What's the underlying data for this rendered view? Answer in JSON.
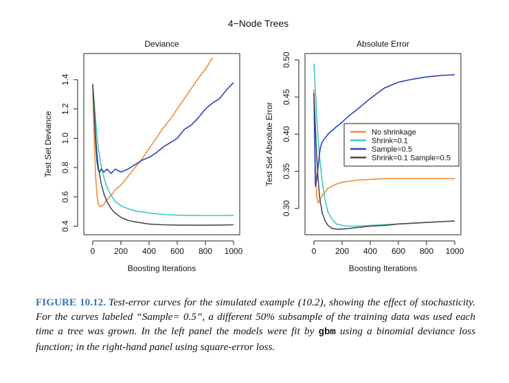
{
  "figure": {
    "title": "4−Node Trees"
  },
  "chart_data": [
    {
      "type": "line",
      "title": "Deviance",
      "xlabel": "Boosting Iterations",
      "ylabel": "Test Set Deviance",
      "xlim": [
        0,
        1000
      ],
      "ylim": [
        0.37,
        1.55
      ],
      "xticks": [
        "0",
        "200",
        "400",
        "600",
        "800",
        "1000"
      ],
      "yticks": [
        "0.4",
        "0.6",
        "0.8",
        "1.0",
        "1.2",
        "1.4"
      ],
      "grid": false,
      "series": [
        {
          "name": "No shrinkage",
          "color": "#f28a30",
          "x": [
            0,
            10,
            20,
            30,
            40,
            50,
            60,
            80,
            100,
            130,
            160,
            200,
            250,
            300,
            350,
            400,
            450,
            500,
            550,
            600,
            650,
            700,
            750,
            800,
            850
          ],
          "y": [
            1.32,
            1.0,
            0.75,
            0.61,
            0.55,
            0.535,
            0.535,
            0.55,
            0.58,
            0.61,
            0.65,
            0.68,
            0.74,
            0.8,
            0.86,
            0.93,
            1.0,
            1.07,
            1.13,
            1.2,
            1.27,
            1.34,
            1.41,
            1.47,
            1.55
          ]
        },
        {
          "name": "Shrink=0.1",
          "color": "#3cc8c0",
          "x": [
            0,
            10,
            20,
            30,
            40,
            60,
            80,
            100,
            130,
            160,
            200,
            250,
            300,
            400,
            500,
            600,
            700,
            800,
            900,
            1000
          ],
          "y": [
            1.36,
            1.25,
            1.13,
            1.02,
            0.93,
            0.81,
            0.73,
            0.67,
            0.61,
            0.57,
            0.54,
            0.52,
            0.505,
            0.49,
            0.48,
            0.476,
            0.474,
            0.473,
            0.473,
            0.474
          ]
        },
        {
          "name": "Sample=0.5",
          "color": "#2b3fc4",
          "x": [
            0,
            10,
            20,
            30,
            40,
            50,
            60,
            80,
            100,
            130,
            160,
            200,
            250,
            300,
            350,
            400,
            450,
            500,
            550,
            600,
            650,
            700,
            750,
            800,
            850,
            900,
            950,
            1000
          ],
          "y": [
            1.36,
            1.18,
            0.98,
            0.84,
            0.78,
            0.77,
            0.79,
            0.77,
            0.79,
            0.76,
            0.79,
            0.77,
            0.79,
            0.82,
            0.85,
            0.87,
            0.9,
            0.94,
            0.97,
            1.0,
            1.06,
            1.09,
            1.14,
            1.2,
            1.24,
            1.27,
            1.33,
            1.38
          ]
        },
        {
          "name": "Shrink=0.1 Sample=0.5",
          "color": "#4a4a4a",
          "x": [
            0,
            10,
            20,
            30,
            40,
            60,
            80,
            100,
            130,
            160,
            200,
            250,
            300,
            400,
            500,
            600,
            700,
            800,
            900,
            1000
          ],
          "y": [
            1.37,
            1.2,
            1.02,
            0.89,
            0.8,
            0.69,
            0.62,
            0.57,
            0.52,
            0.49,
            0.46,
            0.44,
            0.43,
            0.415,
            0.41,
            0.408,
            0.407,
            0.407,
            0.408,
            0.41
          ]
        }
      ]
    },
    {
      "type": "line",
      "title": "Absolute Error",
      "xlabel": "Boosting Iterations",
      "ylabel": "Test Set Absolute Error",
      "xlim": [
        0,
        1000
      ],
      "ylim": [
        0.27,
        0.503
      ],
      "xticks": [
        "0",
        "200",
        "400",
        "600",
        "800",
        "1000"
      ],
      "yticks": [
        "0.30",
        "0.35",
        "0.40",
        "0.45",
        "0.50"
      ],
      "grid": false,
      "legend": {
        "position": "right",
        "entries": [
          "No shrinkage",
          "Shrink=0.1",
          "Sample=0.5",
          "Shrink=0.1 Sample=0.5"
        ]
      },
      "series": [
        {
          "name": "No shrinkage",
          "color": "#f28a30",
          "x": [
            0,
            10,
            20,
            30,
            40,
            60,
            80,
            100,
            150,
            200,
            300,
            400,
            500,
            600,
            700,
            800,
            900,
            1000
          ],
          "y": [
            0.46,
            0.36,
            0.315,
            0.307,
            0.31,
            0.318,
            0.322,
            0.327,
            0.332,
            0.335,
            0.338,
            0.339,
            0.34,
            0.34,
            0.34,
            0.34,
            0.34,
            0.34
          ]
        },
        {
          "name": "Shrink=0.1",
          "color": "#3cc8c0",
          "x": [
            0,
            10,
            20,
            30,
            40,
            60,
            80,
            100,
            130,
            160,
            200,
            250,
            300,
            400,
            500,
            600,
            700,
            800,
            900,
            1000
          ],
          "y": [
            0.495,
            0.46,
            0.425,
            0.395,
            0.37,
            0.335,
            0.31,
            0.295,
            0.285,
            0.279,
            0.277,
            0.276,
            0.276,
            0.277,
            0.278,
            0.279,
            0.28,
            0.281,
            0.282,
            0.283
          ]
        },
        {
          "name": "Sample=0.5",
          "color": "#2b3fc4",
          "x": [
            0,
            10,
            20,
            30,
            40,
            50,
            60,
            80,
            100,
            130,
            160,
            200,
            250,
            300,
            400,
            500,
            600,
            700,
            800,
            900,
            1000
          ],
          "y": [
            0.455,
            0.33,
            0.34,
            0.355,
            0.375,
            0.385,
            0.39,
            0.395,
            0.4,
            0.405,
            0.41,
            0.416,
            0.425,
            0.432,
            0.448,
            0.462,
            0.47,
            0.474,
            0.477,
            0.479,
            0.48
          ]
        },
        {
          "name": "Shrink=0.1 Sample=0.5",
          "color": "#4a4a4a",
          "x": [
            0,
            10,
            20,
            30,
            40,
            60,
            80,
            100,
            130,
            160,
            200,
            250,
            300,
            400,
            500,
            600,
            700,
            800,
            900,
            1000
          ],
          "y": [
            0.455,
            0.41,
            0.37,
            0.34,
            0.315,
            0.293,
            0.283,
            0.277,
            0.273,
            0.272,
            0.272,
            0.273,
            0.274,
            0.276,
            0.277,
            0.279,
            0.28,
            0.281,
            0.282,
            0.283
          ]
        }
      ]
    }
  ],
  "caption": {
    "label": "FIGURE 10.12.",
    "part1": "Test-error curves for the simulated example (10.2), showing the effect of stochasticity. For the curves labeled “Sample= 0.5”, a different 50% subsample of the training data was used each time a tree was grown. In the left panel the models were fit by",
    "code": "gbm",
    "part2": "using a binomial deviance loss function; in the right-hand panel using square-error loss."
  }
}
